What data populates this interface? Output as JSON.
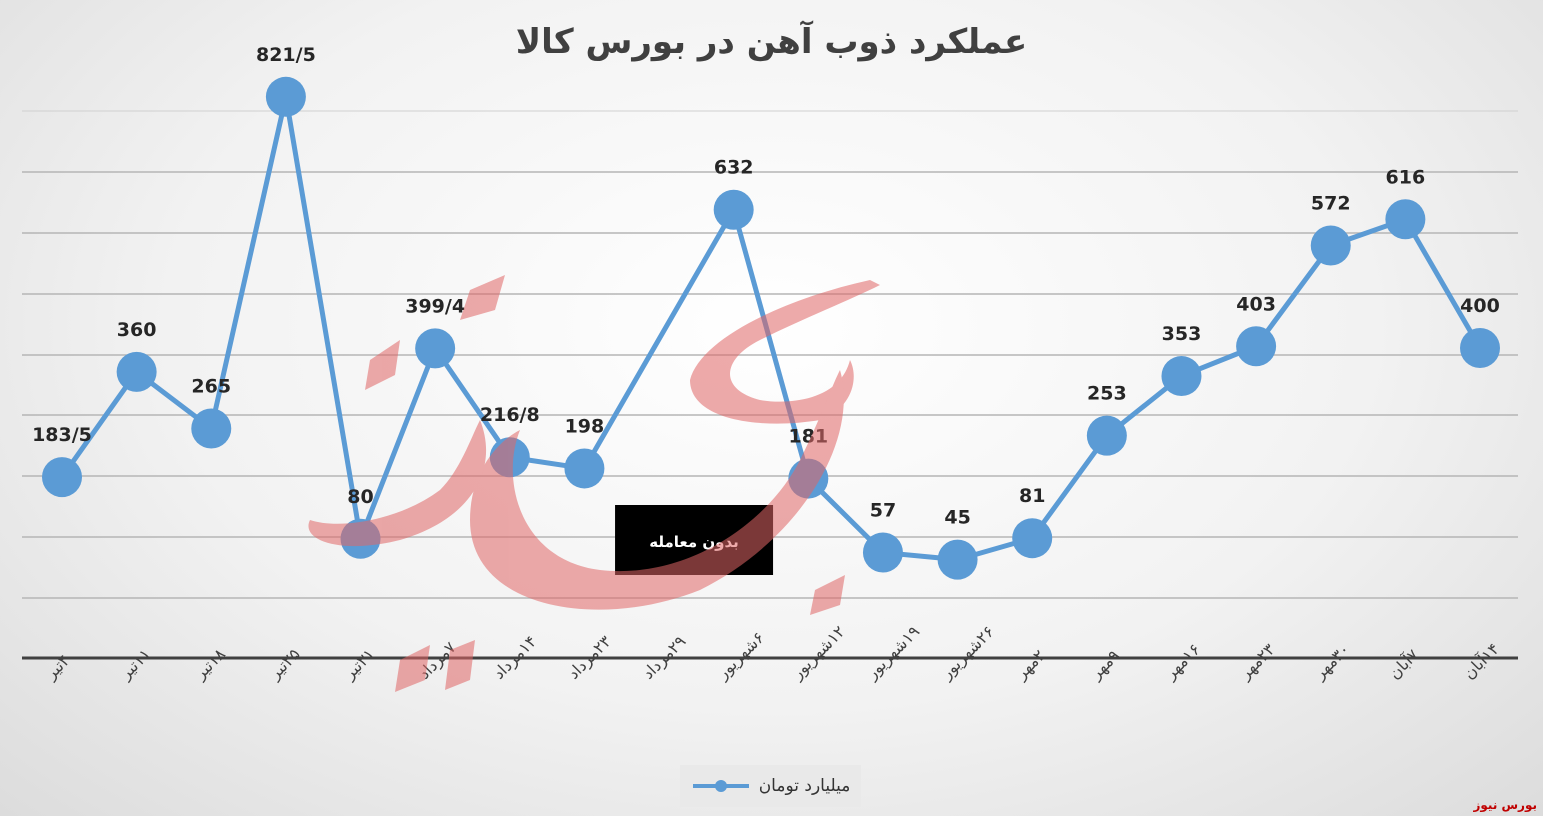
{
  "chart_data": {
    "type": "line",
    "title": "عملکرد ذوب آهن در بورس کالا",
    "categories": [
      "۴تیر",
      "۱۱تیر",
      "۱۸تیر",
      "۲۵تیر",
      "۳۱تیر",
      "۷مرداد",
      "۱۴مرداد",
      "۲۳مرداد",
      "۲۹مرداد",
      "۶شهریور",
      "۱۲شهریور",
      "۱۹شهریور",
      "۲۶شهریور",
      "۲مهر",
      "۹مهر",
      "۱۶مهر",
      "۲۳مهر",
      "۳۰مهر",
      "۷آبان",
      "۱۴آبان"
    ],
    "series": [
      {
        "name": "میلیارد تومان",
        "values": [
          183.5,
          360,
          265,
          821.5,
          80,
          399.4,
          216.8,
          198,
          null,
          632,
          181,
          57,
          45,
          81,
          253,
          353,
          403,
          572,
          616,
          400
        ],
        "labels": [
          "183/5",
          "360",
          "265",
          "821/5",
          "80",
          "399/4",
          "216/8",
          "198",
          "",
          "632",
          "181",
          "57",
          "45",
          "81",
          "253",
          "353",
          "403",
          "572",
          "616",
          "400"
        ],
        "color": "#5B9BD5"
      }
    ],
    "annotation": "بدون معامله",
    "ylim": [
      -120,
      900
    ],
    "grid": true,
    "legend_position": "bottom"
  },
  "watermark_text": "بورس نیوز",
  "corner_mark": "بورس نیوز"
}
